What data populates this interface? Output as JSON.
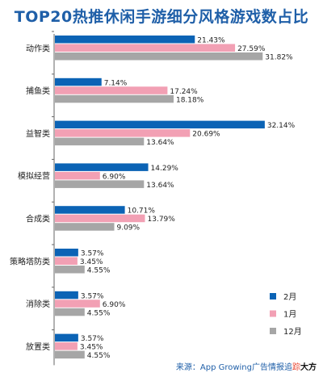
{
  "chart_data": {
    "type": "bar",
    "orientation": "horizontal",
    "title": "TOP20热推休闲手游细分风格游戏数占比",
    "categories": [
      "动作类",
      "捕鱼类",
      "益智类",
      "模拟经营",
      "合成类",
      "策略塔防类",
      "消除类",
      "放置类"
    ],
    "series": [
      {
        "name": "2月",
        "color": "#0b63b5",
        "values": [
          21.43,
          7.14,
          32.14,
          14.29,
          10.71,
          3.57,
          3.57,
          3.57
        ],
        "labels": [
          "21.43%",
          "7.14%",
          "32.14%",
          "14.29%",
          "10.71%",
          "3.57%",
          "3.57%",
          "3.57%"
        ]
      },
      {
        "name": "1月",
        "color": "#f2a0b4",
        "values": [
          27.59,
          17.24,
          20.69,
          6.9,
          13.79,
          3.45,
          6.9,
          3.45
        ],
        "labels": [
          "27.59%",
          "17.24%",
          "20.69%",
          "6.90%",
          "13.79%",
          "3.45%",
          "6.90%",
          "3.45%"
        ]
      },
      {
        "name": "12月",
        "color": "#a6a6a6",
        "values": [
          31.82,
          18.18,
          13.64,
          13.64,
          9.09,
          4.55,
          4.55,
          4.55
        ],
        "labels": [
          "31.82%",
          "18.18%",
          "13.64%",
          "13.64%",
          "9.09%",
          "4.55%",
          "4.55%",
          "4.55%"
        ]
      }
    ],
    "xlim": [
      0,
      35
    ],
    "grid": false,
    "legend_position": "bottom-right"
  },
  "source": {
    "prefix": "来源：App Growing广告情报追",
    "brand_a": "踪",
    "brand_b": "大方"
  }
}
